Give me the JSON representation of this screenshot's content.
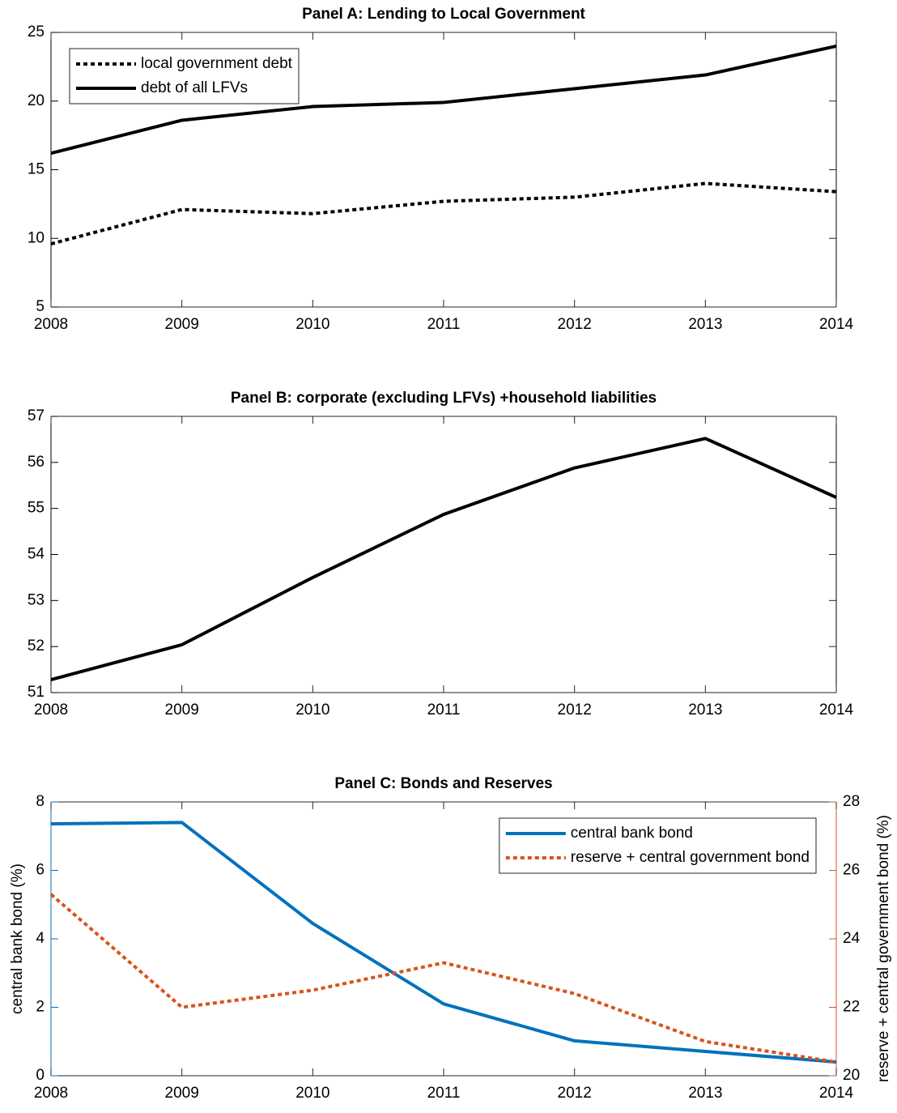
{
  "chart_data": [
    {
      "type": "line",
      "title": "Panel A: Lending to Local Government",
      "x": [
        2008,
        2009,
        2010,
        2011,
        2012,
        2013,
        2014
      ],
      "xlim": [
        2008,
        2014
      ],
      "xticks": [
        2008,
        2009,
        2010,
        2011,
        2012,
        2013,
        2014
      ],
      "ylim": [
        5,
        25
      ],
      "yticks": [
        5,
        10,
        15,
        20,
        25
      ],
      "legend": "upper left",
      "series": [
        {
          "name": "local government debt",
          "color": "#000000",
          "line_style": "dotted",
          "values": [
            9.6,
            12.1,
            11.8,
            12.7,
            13.0,
            14.0,
            13.4
          ]
        },
        {
          "name": "debt of all LFVs",
          "color": "#000000",
          "line_style": "solid",
          "values": [
            16.2,
            18.6,
            19.6,
            19.9,
            20.9,
            21.9,
            24.0
          ]
        }
      ]
    },
    {
      "type": "line",
      "title": "Panel B: corporate (excluding LFVs) +household liabilities",
      "x": [
        2008,
        2009,
        2010,
        2011,
        2012,
        2013,
        2014
      ],
      "xlim": [
        2008,
        2014
      ],
      "xticks": [
        2008,
        2009,
        2010,
        2011,
        2012,
        2013,
        2014
      ],
      "ylim": [
        51,
        57
      ],
      "yticks": [
        51,
        52,
        53,
        54,
        55,
        56,
        57
      ],
      "series": [
        {
          "color": "#000000",
          "line_style": "solid",
          "values": [
            51.28,
            52.04,
            53.5,
            54.87,
            55.88,
            56.52,
            55.24
          ]
        }
      ]
    },
    {
      "type": "line",
      "title": "Panel C: Bonds and Reserves",
      "x": [
        2008,
        2009,
        2010,
        2011,
        2012,
        2013,
        2014
      ],
      "xlim": [
        2008,
        2014
      ],
      "xticks": [
        2008,
        2009,
        2010,
        2011,
        2012,
        2013,
        2014
      ],
      "ylabel": "central bank bond (%)",
      "y2label": "reserve + central government bond (%)",
      "ylim": [
        0,
        8
      ],
      "yticks": [
        0,
        2,
        4,
        6,
        8
      ],
      "y2lim": [
        20,
        28
      ],
      "y2ticks": [
        20,
        22,
        24,
        26,
        28
      ],
      "legend": "upper right",
      "series": [
        {
          "name": "central bank bond",
          "color": "#0072bd",
          "line_style": "solid",
          "values": [
            7.36,
            7.4,
            4.45,
            2.1,
            1.02,
            0.71,
            0.4
          ]
        },
        {
          "name": "reserve + central government bond",
          "color": "#d95319",
          "line_style": "dotted",
          "axis": "y2",
          "values": [
            25.3,
            22.0,
            22.5,
            23.3,
            22.4,
            21.0,
            20.4
          ]
        }
      ]
    }
  ]
}
